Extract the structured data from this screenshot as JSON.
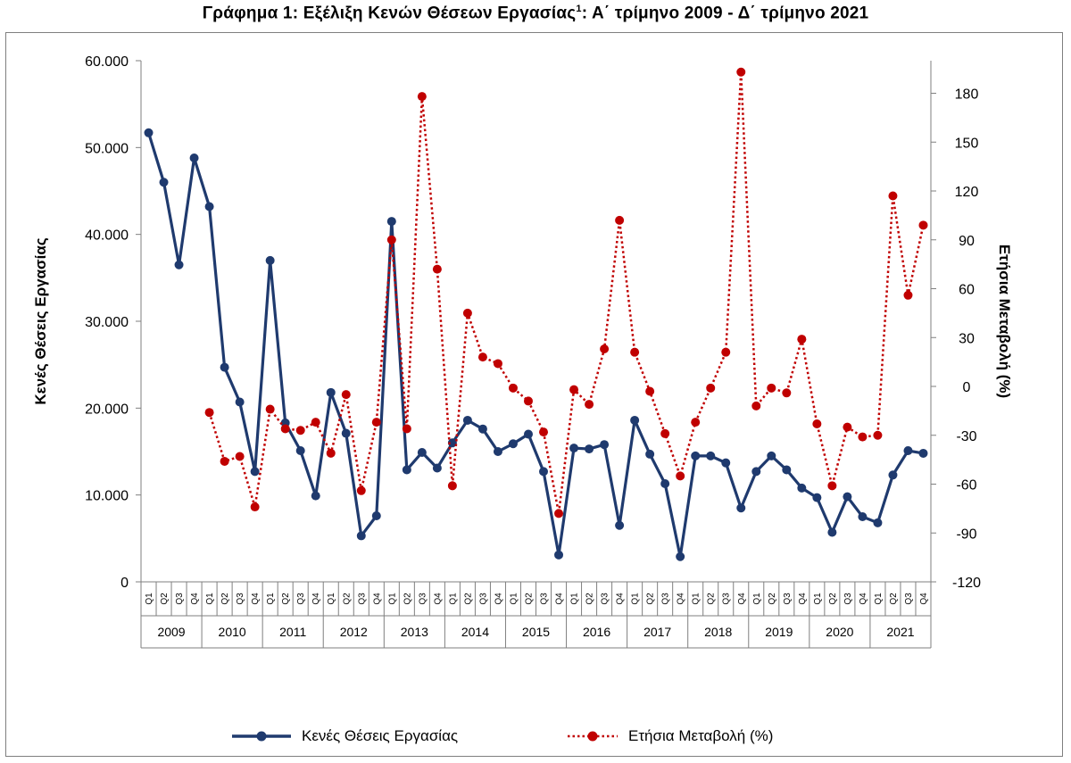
{
  "title": {
    "main": "Γράφημα 1: Εξέλιξη Κενών Θέσεων Εργασίας",
    "superscript": "1",
    "range": ": Α΄ τρίμηνο 2009 - Δ΄ τρίμηνο 2021"
  },
  "chart_data": {
    "type": "line",
    "y_left_label": "Κενές Θέσεις Εργασίας",
    "y_right_label": "Ετήσια Μεταβολή (%)",
    "y_left_lim": [
      0,
      60000
    ],
    "y_left_ticks": [
      0,
      10000,
      20000,
      30000,
      40000,
      50000,
      60000
    ],
    "y_left_tick_labels": [
      "0",
      "10.000",
      "20.000",
      "30.000",
      "40.000",
      "50.000",
      "60.000"
    ],
    "y_right_lim": [
      -120,
      200
    ],
    "y_right_ticks": [
      -120,
      -90,
      -60,
      -30,
      0,
      30,
      60,
      90,
      120,
      150,
      180
    ],
    "y_right_tick_labels": [
      "-120",
      "-90",
      "-60",
      "-30",
      "0",
      "30",
      "60",
      "90",
      "120",
      "150",
      "180"
    ],
    "quarter_labels": [
      "Q1",
      "Q2",
      "Q3",
      "Q4"
    ],
    "years": [
      "2009",
      "2010",
      "2011",
      "2012",
      "2013",
      "2014",
      "2015",
      "2016",
      "2017",
      "2018",
      "2019",
      "2020",
      "2021"
    ],
    "grid": false,
    "legend_position": "bottom",
    "series": [
      {
        "name": "Κενές Θέσεις Εργασίας",
        "axis": "left",
        "color": "#1f3a6e",
        "style": "solid",
        "values": [
          51700,
          46000,
          36500,
          48800,
          43200,
          24700,
          20700,
          12700,
          37000,
          18300,
          15100,
          9900,
          21800,
          17100,
          5300,
          7600,
          41500,
          12900,
          14900,
          13100,
          16000,
          18600,
          17600,
          15000,
          15900,
          17000,
          12700,
          3100,
          15400,
          15300,
          15800,
          6500,
          18600,
          14700,
          11300,
          2900,
          14500,
          14500,
          13700,
          8500,
          12700,
          14500,
          12900,
          10800,
          9700,
          5700,
          9800,
          7500,
          6800,
          12300,
          15100,
          14800
        ]
      },
      {
        "name": "Ετήσια Μεταβολή (%)",
        "axis": "right",
        "color": "#c00000",
        "style": "dotted",
        "values": [
          null,
          null,
          null,
          null,
          -16,
          -46,
          -43,
          -74,
          -14,
          -26,
          -27,
          -22,
          -41,
          -5,
          -64,
          -22,
          90,
          -26,
          178,
          72,
          -61,
          45,
          18,
          14,
          -1,
          -9,
          -28,
          -78,
          -2,
          -11,
          23,
          102,
          21,
          -3,
          -29,
          -55,
          -22,
          -1,
          21,
          193,
          -12,
          -1,
          -4,
          29,
          -23,
          -61,
          -25,
          -31,
          -30,
          117,
          56,
          99
        ]
      }
    ]
  }
}
